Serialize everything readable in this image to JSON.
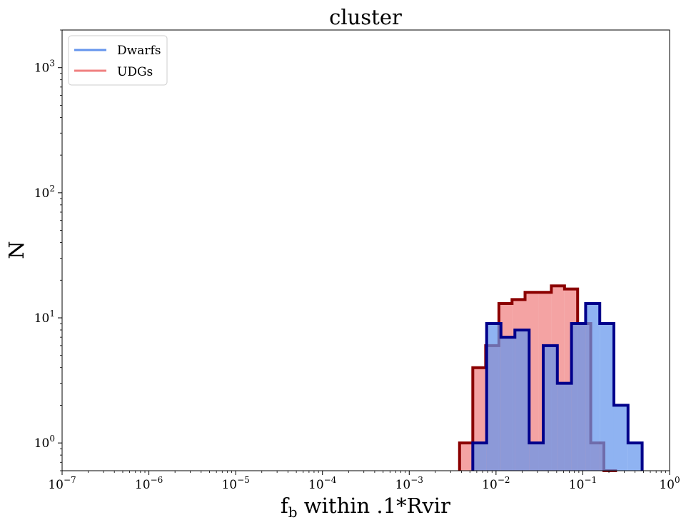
{
  "chart_data": {
    "type": "histogram",
    "title": "cluster",
    "xlabel_main": "f",
    "xlabel_sub": "b",
    "xlabel_rest": " within .1*Rvir",
    "ylabel": "N",
    "xscale": "log",
    "yscale": "log",
    "xlim": [
      1e-07,
      1
    ],
    "ylim": [
      0.6,
      2000
    ],
    "x_ticks": [
      {
        "value": 1e-07,
        "base": "10",
        "exp": "−7"
      },
      {
        "value": 1e-06,
        "base": "10",
        "exp": "−6"
      },
      {
        "value": 1e-05,
        "base": "10",
        "exp": "−5"
      },
      {
        "value": 0.0001,
        "base": "10",
        "exp": "−4"
      },
      {
        "value": 0.001,
        "base": "10",
        "exp": "−3"
      },
      {
        "value": 0.01,
        "base": "10",
        "exp": "−2"
      },
      {
        "value": 0.1,
        "base": "10",
        "exp": "−1"
      },
      {
        "value": 1,
        "base": "10",
        "exp": "0"
      }
    ],
    "y_ticks": [
      {
        "value": 1,
        "base": "10",
        "exp": "0"
      },
      {
        "value": 10,
        "base": "10",
        "exp": "1"
      },
      {
        "value": 100,
        "base": "10",
        "exp": "2"
      },
      {
        "value": 1000,
        "base": "10",
        "exp": "3"
      }
    ],
    "legend_position": "top-left",
    "series": [
      {
        "name": "UDGs",
        "fill_color": "#f08080",
        "edge_color": "#8b0000",
        "legend_color": "#f08080",
        "bin_edges": [
          0.0038,
          0.0054,
          0.0076,
          0.0108,
          0.0153,
          0.0216,
          0.0307,
          0.0434,
          0.0616,
          0.0872,
          0.1235,
          0.175,
          0.2478
        ],
        "counts": [
          1,
          4,
          6,
          13,
          14,
          16,
          16,
          18,
          17,
          9,
          1,
          0
        ]
      },
      {
        "name": "Dwarfs",
        "fill_color": "#6495ed",
        "edge_color": "#00008b",
        "legend_color": "#6495ed",
        "bin_edges": [
          0.0054,
          0.0078,
          0.0114,
          0.0165,
          0.0241,
          0.035,
          0.0509,
          0.0741,
          0.1078,
          0.1569,
          0.2282,
          0.332,
          0.483
        ],
        "counts": [
          1,
          9,
          7,
          8,
          1,
          6,
          3,
          9,
          13,
          9,
          2,
          1
        ]
      }
    ]
  }
}
